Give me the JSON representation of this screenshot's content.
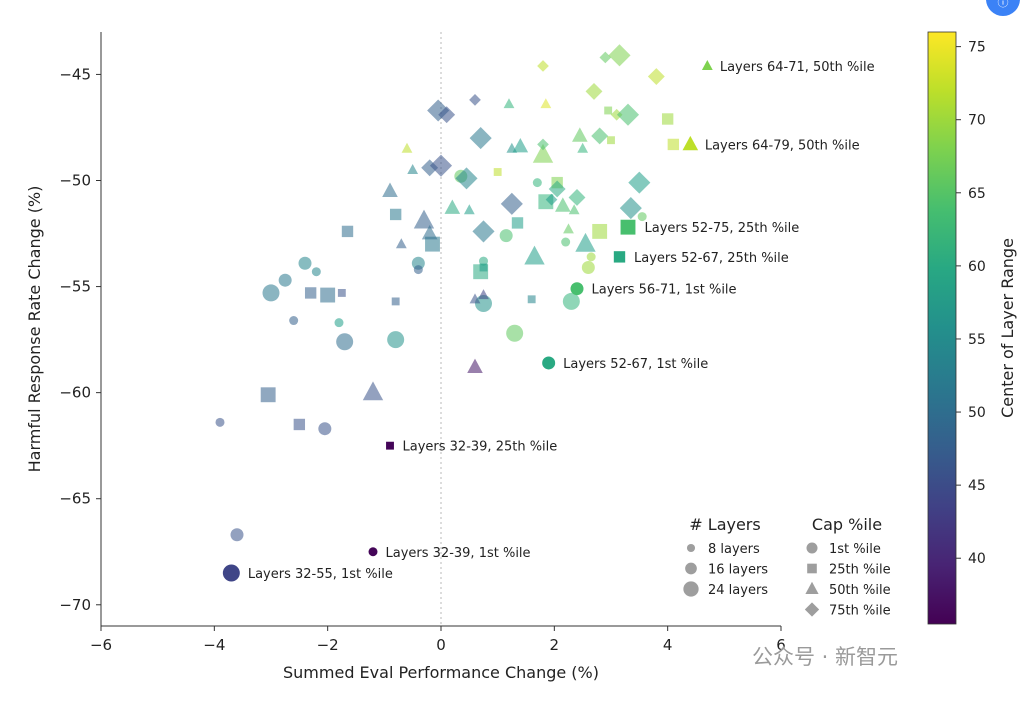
{
  "chart_data": {
    "type": "scatter",
    "xlabel": "Summed Eval Performance Change (%)",
    "ylabel": "Harmful Response Rate Change (%)",
    "xlim": [
      -6,
      6
    ],
    "ylim": [
      -71,
      -43
    ],
    "xticks": [
      -6,
      -4,
      -2,
      0,
      2,
      4,
      6
    ],
    "yticks": [
      -70,
      -65,
      -60,
      -55,
      -50,
      -45
    ],
    "grid": false,
    "zero_line": "dotted vertical at x = 0",
    "colorbar": {
      "label": "Center of Layer Range",
      "colormap": "viridis",
      "range": [
        35.5,
        76
      ],
      "ticks": [
        40,
        45,
        50,
        55,
        60,
        65,
        70,
        75
      ]
    },
    "legend_layers": {
      "title": "# Layers",
      "entries": [
        "8 layers",
        "16 layers",
        "24 layers"
      ]
    },
    "legend_cap": {
      "title": "Cap %ile",
      "entries": [
        {
          "label": "1st %ile",
          "shape": "circle"
        },
        {
          "label": "25th %ile",
          "shape": "square"
        },
        {
          "label": "50th %ile",
          "shape": "triangle"
        },
        {
          "label": "75th %ile",
          "shape": "diamond"
        }
      ]
    },
    "annotations": [
      "Layers 64-71, 50th %ile",
      "Layers 64-79, 50th %ile",
      "Layers 52-75, 25th %ile",
      "Layers 52-67, 25th %ile",
      "Layers 56-71, 1st %ile",
      "Layers 52-67, 1st %ile",
      "Layers 32-39, 25th %ile",
      "Layers 32-39, 1st %ile",
      "Layers 32-55, 1st %ile"
    ],
    "highlighted_points": [
      {
        "label": "Layers 64-71, 50th %ile",
        "x": 4.7,
        "y": -44.6,
        "center": 68,
        "layers": 8,
        "cap": "50th"
      },
      {
        "label": "Layers 64-79, 50th %ile",
        "x": 4.4,
        "y": -48.3,
        "center": 72,
        "layers": 16,
        "cap": "50th"
      },
      {
        "label": "Layers 52-75, 25th %ile",
        "x": 3.3,
        "y": -52.2,
        "center": 64,
        "layers": 24,
        "cap": "25th"
      },
      {
        "label": "Layers 52-67, 25th %ile",
        "x": 3.15,
        "y": -53.6,
        "center": 60,
        "layers": 16,
        "cap": "25th"
      },
      {
        "label": "Layers 56-71, 1st %ile",
        "x": 2.4,
        "y": -55.1,
        "center": 64,
        "layers": 16,
        "cap": "1st"
      },
      {
        "label": "Layers 52-67, 1st %ile",
        "x": 1.9,
        "y": -58.6,
        "center": 60,
        "layers": 16,
        "cap": "1st"
      },
      {
        "label": "Layers 32-39, 25th %ile",
        "x": -0.9,
        "y": -62.5,
        "center": 36,
        "layers": 8,
        "cap": "25th"
      },
      {
        "label": "Layers 32-39, 1st %ile",
        "x": -1.2,
        "y": -67.5,
        "center": 36,
        "layers": 8,
        "cap": "1st"
      },
      {
        "label": "Layers 32-55, 1st %ile",
        "x": -3.7,
        "y": -68.5,
        "center": 44,
        "layers": 24,
        "cap": "1st"
      }
    ],
    "other_points": [
      {
        "x": -3.9,
        "y": -61.4,
        "center": 46,
        "layers": 8,
        "cap": "1st"
      },
      {
        "x": -3.6,
        "y": -66.7,
        "center": 46,
        "layers": 16,
        "cap": "1st"
      },
      {
        "x": -3.0,
        "y": -55.3,
        "center": 52,
        "layers": 24,
        "cap": "1st"
      },
      {
        "x": -2.75,
        "y": -54.7,
        "center": 52,
        "layers": 16,
        "cap": "1st"
      },
      {
        "x": -2.6,
        "y": -56.6,
        "center": 48,
        "layers": 8,
        "cap": "1st"
      },
      {
        "x": -2.4,
        "y": -53.9,
        "center": 54,
        "layers": 16,
        "cap": "1st"
      },
      {
        "x": -2.2,
        "y": -54.3,
        "center": 54,
        "layers": 8,
        "cap": "1st"
      },
      {
        "x": -2.05,
        "y": -61.7,
        "center": 46,
        "layers": 16,
        "cap": "1st"
      },
      {
        "x": -1.8,
        "y": -56.7,
        "center": 58,
        "layers": 8,
        "cap": "1st"
      },
      {
        "x": -1.7,
        "y": -57.6,
        "center": 50,
        "layers": 24,
        "cap": "1st"
      },
      {
        "x": -0.8,
        "y": -57.5,
        "center": 56,
        "layers": 24,
        "cap": "1st"
      },
      {
        "x": -0.4,
        "y": -53.9,
        "center": 54,
        "layers": 16,
        "cap": "1st"
      },
      {
        "x": -0.4,
        "y": -54.2,
        "center": 48,
        "layers": 8,
        "cap": "1st"
      },
      {
        "x": 0.35,
        "y": -49.8,
        "center": 66,
        "layers": 16,
        "cap": "1st"
      },
      {
        "x": 0.75,
        "y": -55.8,
        "center": 56,
        "layers": 24,
        "cap": "1st"
      },
      {
        "x": 0.75,
        "y": -53.8,
        "center": 60,
        "layers": 8,
        "cap": "1st"
      },
      {
        "x": 1.15,
        "y": -52.6,
        "center": 64,
        "layers": 16,
        "cap": "1st"
      },
      {
        "x": 1.3,
        "y": -57.2,
        "center": 66,
        "layers": 24,
        "cap": "1st"
      },
      {
        "x": 1.7,
        "y": -50.1,
        "center": 62,
        "layers": 8,
        "cap": "1st"
      },
      {
        "x": 2.2,
        "y": -52.9,
        "center": 64,
        "layers": 8,
        "cap": "1st"
      },
      {
        "x": 2.3,
        "y": -55.7,
        "center": 62,
        "layers": 24,
        "cap": "1st"
      },
      {
        "x": 2.6,
        "y": -54.1,
        "center": 70,
        "layers": 16,
        "cap": "1st"
      },
      {
        "x": 2.65,
        "y": -53.6,
        "center": 70,
        "layers": 8,
        "cap": "1st"
      },
      {
        "x": 3.55,
        "y": -51.7,
        "center": 66,
        "layers": 8,
        "cap": "1st"
      },
      {
        "x": -3.05,
        "y": -60.1,
        "center": 48,
        "layers": 24,
        "cap": "25th"
      },
      {
        "x": -2.5,
        "y": -61.5,
        "center": 46,
        "layers": 16,
        "cap": "25th"
      },
      {
        "x": -2.3,
        "y": -55.3,
        "center": 48,
        "layers": 16,
        "cap": "25th"
      },
      {
        "x": -2.0,
        "y": -55.4,
        "center": 50,
        "layers": 24,
        "cap": "25th"
      },
      {
        "x": -1.75,
        "y": -55.3,
        "center": 46,
        "layers": 8,
        "cap": "25th"
      },
      {
        "x": -1.65,
        "y": -52.4,
        "center": 50,
        "layers": 16,
        "cap": "25th"
      },
      {
        "x": -0.8,
        "y": -55.7,
        "center": 48,
        "layers": 8,
        "cap": "25th"
      },
      {
        "x": -0.8,
        "y": -51.6,
        "center": 52,
        "layers": 16,
        "cap": "25th"
      },
      {
        "x": -0.15,
        "y": -53.0,
        "center": 52,
        "layers": 24,
        "cap": "25th"
      },
      {
        "x": 0.7,
        "y": -54.3,
        "center": 60,
        "layers": 24,
        "cap": "25th"
      },
      {
        "x": 0.75,
        "y": -54.1,
        "center": 58,
        "layers": 8,
        "cap": "25th"
      },
      {
        "x": 1.0,
        "y": -49.6,
        "center": 72,
        "layers": 8,
        "cap": "25th"
      },
      {
        "x": 1.35,
        "y": -52.0,
        "center": 58,
        "layers": 16,
        "cap": "25th"
      },
      {
        "x": 1.6,
        "y": -55.6,
        "center": 54,
        "layers": 8,
        "cap": "25th"
      },
      {
        "x": 1.85,
        "y": -51.0,
        "center": 62,
        "layers": 24,
        "cap": "25th"
      },
      {
        "x": 2.05,
        "y": -50.1,
        "center": 68,
        "layers": 16,
        "cap": "25th"
      },
      {
        "x": 2.8,
        "y": -52.4,
        "center": 70,
        "layers": 24,
        "cap": "25th"
      },
      {
        "x": 2.95,
        "y": -46.7,
        "center": 68,
        "layers": 8,
        "cap": "25th"
      },
      {
        "x": 3.0,
        "y": -48.1,
        "center": 70,
        "layers": 8,
        "cap": "25th"
      },
      {
        "x": 4.0,
        "y": -47.1,
        "center": 70,
        "layers": 16,
        "cap": "25th"
      },
      {
        "x": 4.1,
        "y": -48.3,
        "center": 72,
        "layers": 16,
        "cap": "25th"
      },
      {
        "x": -1.2,
        "y": -60.0,
        "center": 46,
        "layers": 24,
        "cap": "50th"
      },
      {
        "x": -0.9,
        "y": -50.5,
        "center": 50,
        "layers": 16,
        "cap": "50th"
      },
      {
        "x": -0.7,
        "y": -53.0,
        "center": 48,
        "layers": 8,
        "cap": "50th"
      },
      {
        "x": -0.5,
        "y": -49.5,
        "center": 54,
        "layers": 8,
        "cap": "50th"
      },
      {
        "x": -0.3,
        "y": -51.9,
        "center": 48,
        "layers": 24,
        "cap": "50th"
      },
      {
        "x": -0.2,
        "y": -52.5,
        "center": 50,
        "layers": 16,
        "cap": "50th"
      },
      {
        "x": -0.6,
        "y": -48.5,
        "center": 72,
        "layers": 8,
        "cap": "50th"
      },
      {
        "x": 0.2,
        "y": -51.3,
        "center": 60,
        "layers": 16,
        "cap": "50th"
      },
      {
        "x": 0.5,
        "y": -51.4,
        "center": 58,
        "layers": 8,
        "cap": "50th"
      },
      {
        "x": 0.6,
        "y": -55.6,
        "center": 46,
        "layers": 8,
        "cap": "50th"
      },
      {
        "x": 0.6,
        "y": -58.8,
        "center": 38,
        "layers": 16,
        "cap": "50th"
      },
      {
        "x": 0.75,
        "y": -55.4,
        "center": 44,
        "layers": 8,
        "cap": "50th"
      },
      {
        "x": 1.2,
        "y": -46.4,
        "center": 62,
        "layers": 8,
        "cap": "50th"
      },
      {
        "x": 1.25,
        "y": -48.5,
        "center": 56,
        "layers": 8,
        "cap": "50th"
      },
      {
        "x": 1.4,
        "y": -48.4,
        "center": 58,
        "layers": 16,
        "cap": "50th"
      },
      {
        "x": 1.65,
        "y": -53.6,
        "center": 58,
        "layers": 24,
        "cap": "50th"
      },
      {
        "x": 1.8,
        "y": -48.8,
        "center": 68,
        "layers": 24,
        "cap": "50th"
      },
      {
        "x": 1.85,
        "y": -46.4,
        "center": 74,
        "layers": 8,
        "cap": "50th"
      },
      {
        "x": 2.15,
        "y": -51.2,
        "center": 64,
        "layers": 16,
        "cap": "50th"
      },
      {
        "x": 2.25,
        "y": -52.3,
        "center": 66,
        "layers": 8,
        "cap": "50th"
      },
      {
        "x": 2.35,
        "y": -51.4,
        "center": 64,
        "layers": 8,
        "cap": "50th"
      },
      {
        "x": 2.45,
        "y": -47.9,
        "center": 66,
        "layers": 16,
        "cap": "50th"
      },
      {
        "x": 2.5,
        "y": -48.5,
        "center": 62,
        "layers": 8,
        "cap": "50th"
      },
      {
        "x": 2.55,
        "y": -53.0,
        "center": 58,
        "layers": 24,
        "cap": "50th"
      },
      {
        "x": -0.05,
        "y": -46.7,
        "center": 48,
        "layers": 24,
        "cap": "75th"
      },
      {
        "x": 0.1,
        "y": -46.9,
        "center": 46,
        "layers": 16,
        "cap": "75th"
      },
      {
        "x": -0.2,
        "y": -49.4,
        "center": 48,
        "layers": 16,
        "cap": "75th"
      },
      {
        "x": 0.0,
        "y": -49.3,
        "center": 46,
        "layers": 24,
        "cap": "75th"
      },
      {
        "x": 0.45,
        "y": -49.9,
        "center": 54,
        "layers": 24,
        "cap": "75th"
      },
      {
        "x": 0.6,
        "y": -46.2,
        "center": 46,
        "layers": 8,
        "cap": "75th"
      },
      {
        "x": 0.7,
        "y": -48.0,
        "center": 52,
        "layers": 24,
        "cap": "75th"
      },
      {
        "x": 0.75,
        "y": -52.4,
        "center": 52,
        "layers": 24,
        "cap": "75th"
      },
      {
        "x": 1.25,
        "y": -51.1,
        "center": 48,
        "layers": 24,
        "cap": "75th"
      },
      {
        "x": 1.8,
        "y": -44.6,
        "center": 72,
        "layers": 8,
        "cap": "75th"
      },
      {
        "x": 1.8,
        "y": -48.3,
        "center": 64,
        "layers": 8,
        "cap": "75th"
      },
      {
        "x": 1.95,
        "y": -50.9,
        "center": 58,
        "layers": 8,
        "cap": "75th"
      },
      {
        "x": 2.05,
        "y": -50.4,
        "center": 60,
        "layers": 16,
        "cap": "75th"
      },
      {
        "x": 2.4,
        "y": -50.8,
        "center": 62,
        "layers": 16,
        "cap": "75th"
      },
      {
        "x": 2.7,
        "y": -45.8,
        "center": 70,
        "layers": 16,
        "cap": "75th"
      },
      {
        "x": 2.8,
        "y": -47.9,
        "center": 64,
        "layers": 16,
        "cap": "75th"
      },
      {
        "x": 2.9,
        "y": -44.2,
        "center": 66,
        "layers": 8,
        "cap": "75th"
      },
      {
        "x": 3.15,
        "y": -44.1,
        "center": 68,
        "layers": 24,
        "cap": "75th"
      },
      {
        "x": 3.1,
        "y": -46.9,
        "center": 70,
        "layers": 8,
        "cap": "75th"
      },
      {
        "x": 3.3,
        "y": -46.9,
        "center": 64,
        "layers": 24,
        "cap": "75th"
      },
      {
        "x": 3.35,
        "y": -51.3,
        "center": 56,
        "layers": 24,
        "cap": "75th"
      },
      {
        "x": 3.5,
        "y": -50.1,
        "center": 58,
        "layers": 24,
        "cap": "75th"
      },
      {
        "x": 3.8,
        "y": -45.1,
        "center": 72,
        "layers": 16,
        "cap": "75th"
      }
    ]
  },
  "watermark": "公众号 · 新智元",
  "corner_badge": "ⓘ"
}
